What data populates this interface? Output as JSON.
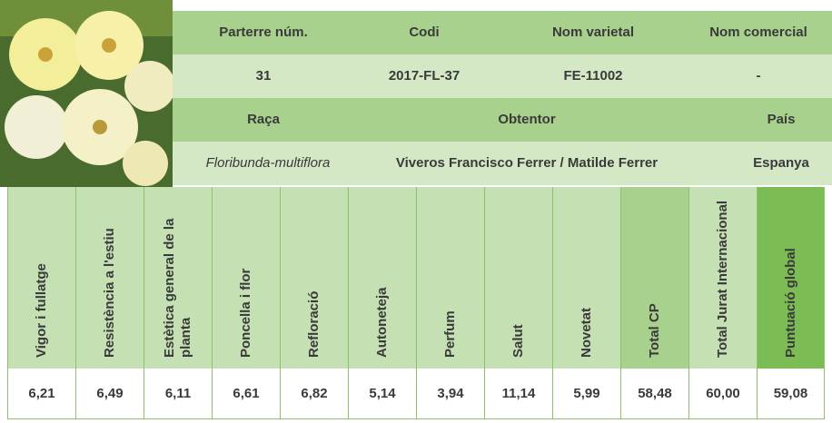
{
  "info": {
    "labels": [
      "Parterre núm.",
      "Codi",
      "Nom varietal",
      "Nom comercial"
    ],
    "values": [
      "31",
      "2017-FL-37",
      "FE-11002",
      "-"
    ]
  },
  "origin": {
    "labels": [
      "Raça",
      "Obtentor",
      "País"
    ],
    "values": [
      "Floribunda-multiflora",
      "Viveros Francisco Ferrer / Matilde Ferrer",
      "Espanya"
    ]
  },
  "scores": {
    "headers": [
      "Vigor i fullatge",
      "Resistència a l'estiu",
      "Estètica general de la planta",
      "Poncella i flor",
      "Refloració",
      "Autoneteja",
      "Perfum",
      "Salut",
      "Novetat",
      "Total CP",
      "Total Jurat Internacional",
      "Puntuació global"
    ],
    "values": [
      "6,21",
      "6,49",
      "6,11",
      "6,61",
      "6,82",
      "5,14",
      "3,94",
      "11,14",
      "5,99",
      "58,48",
      "60,00",
      "59,08"
    ]
  }
}
